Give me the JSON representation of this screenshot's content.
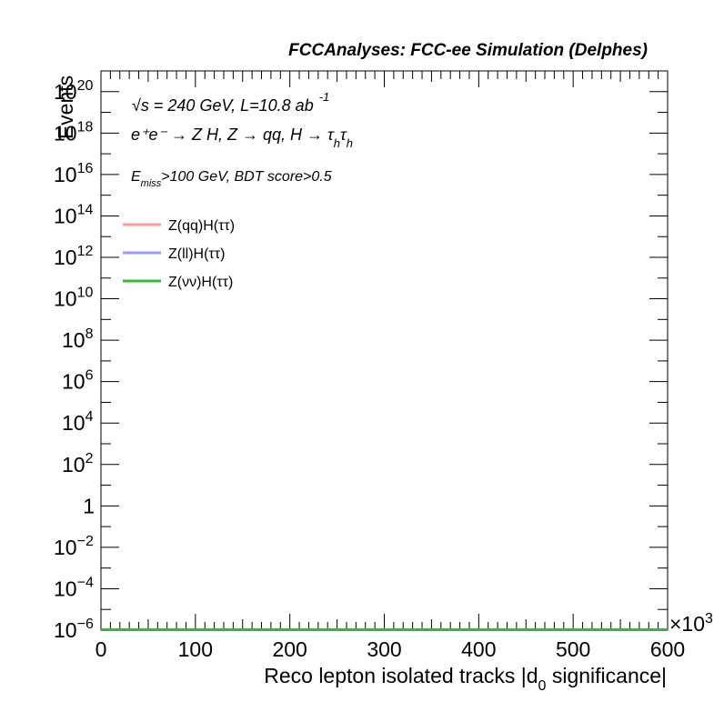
{
  "chart_data": {
    "type": "line",
    "title": "FCCAnalyses: FCC-ee Simulation (Delphes)",
    "xlabel_main": "Reco lepton isolated tracks |d",
    "xlabel_sub": "0",
    "xlabel_tail": " significance|",
    "ylabel": "Events",
    "x_multiplier": "×10",
    "x_multiplier_exp": "3",
    "xlim": [
      0,
      600
    ],
    "ylim_log10": [
      -6,
      21
    ],
    "log_y": true,
    "x_ticks": [
      "0",
      "100",
      "200",
      "300",
      "400",
      "500",
      "600"
    ],
    "y_ticks": [
      {
        "exp": -6,
        "base": "10",
        "sup": "−6"
      },
      {
        "exp": -4,
        "base": "10",
        "sup": "−4"
      },
      {
        "exp": -2,
        "base": "10",
        "sup": "−2"
      },
      {
        "exp": 0,
        "base": "1",
        "sup": ""
      },
      {
        "exp": 2,
        "base": "10",
        "sup": "2"
      },
      {
        "exp": 4,
        "base": "10",
        "sup": "4"
      },
      {
        "exp": 6,
        "base": "10",
        "sup": "6"
      },
      {
        "exp": 8,
        "base": "10",
        "sup": "8"
      },
      {
        "exp": 10,
        "base": "10",
        "sup": "10"
      },
      {
        "exp": 12,
        "base": "10",
        "sup": "12"
      },
      {
        "exp": 14,
        "base": "10",
        "sup": "14"
      },
      {
        "exp": 16,
        "base": "10",
        "sup": "16"
      },
      {
        "exp": 18,
        "base": "10",
        "sup": "18"
      },
      {
        "exp": 20,
        "base": "10",
        "sup": "20"
      }
    ],
    "annotations": {
      "energy_sqrt": "√s",
      "energy_rest": " = 240 GeV, L=10.8 ab",
      "lumi_exp": "-1",
      "process": "e⁺e⁻ → Z H, Z  → qq, H  → τ",
      "process_sub1": "h",
      "process_tau2": "τ",
      "process_sub2": "h",
      "cut_E": "E",
      "cut_sub": "miss",
      "cut_rest": ">100 GeV, BDT score>0.5"
    },
    "legend_position": "top-left",
    "series": [
      {
        "name": "Z(qq)H(ττ)",
        "color": "#ff9999",
        "x": [
          0,
          600
        ],
        "y_log10": [
          -6,
          -6
        ]
      },
      {
        "name": "Z(ll)H(ττ)",
        "color": "#9999ff",
        "x": [
          0,
          600
        ],
        "y_log10": [
          -6,
          -6
        ]
      },
      {
        "name": "Z(νν)H(ττ)",
        "color": "#33bb33",
        "x": [
          0,
          600
        ],
        "y_log10": [
          -6,
          -6
        ]
      }
    ]
  }
}
